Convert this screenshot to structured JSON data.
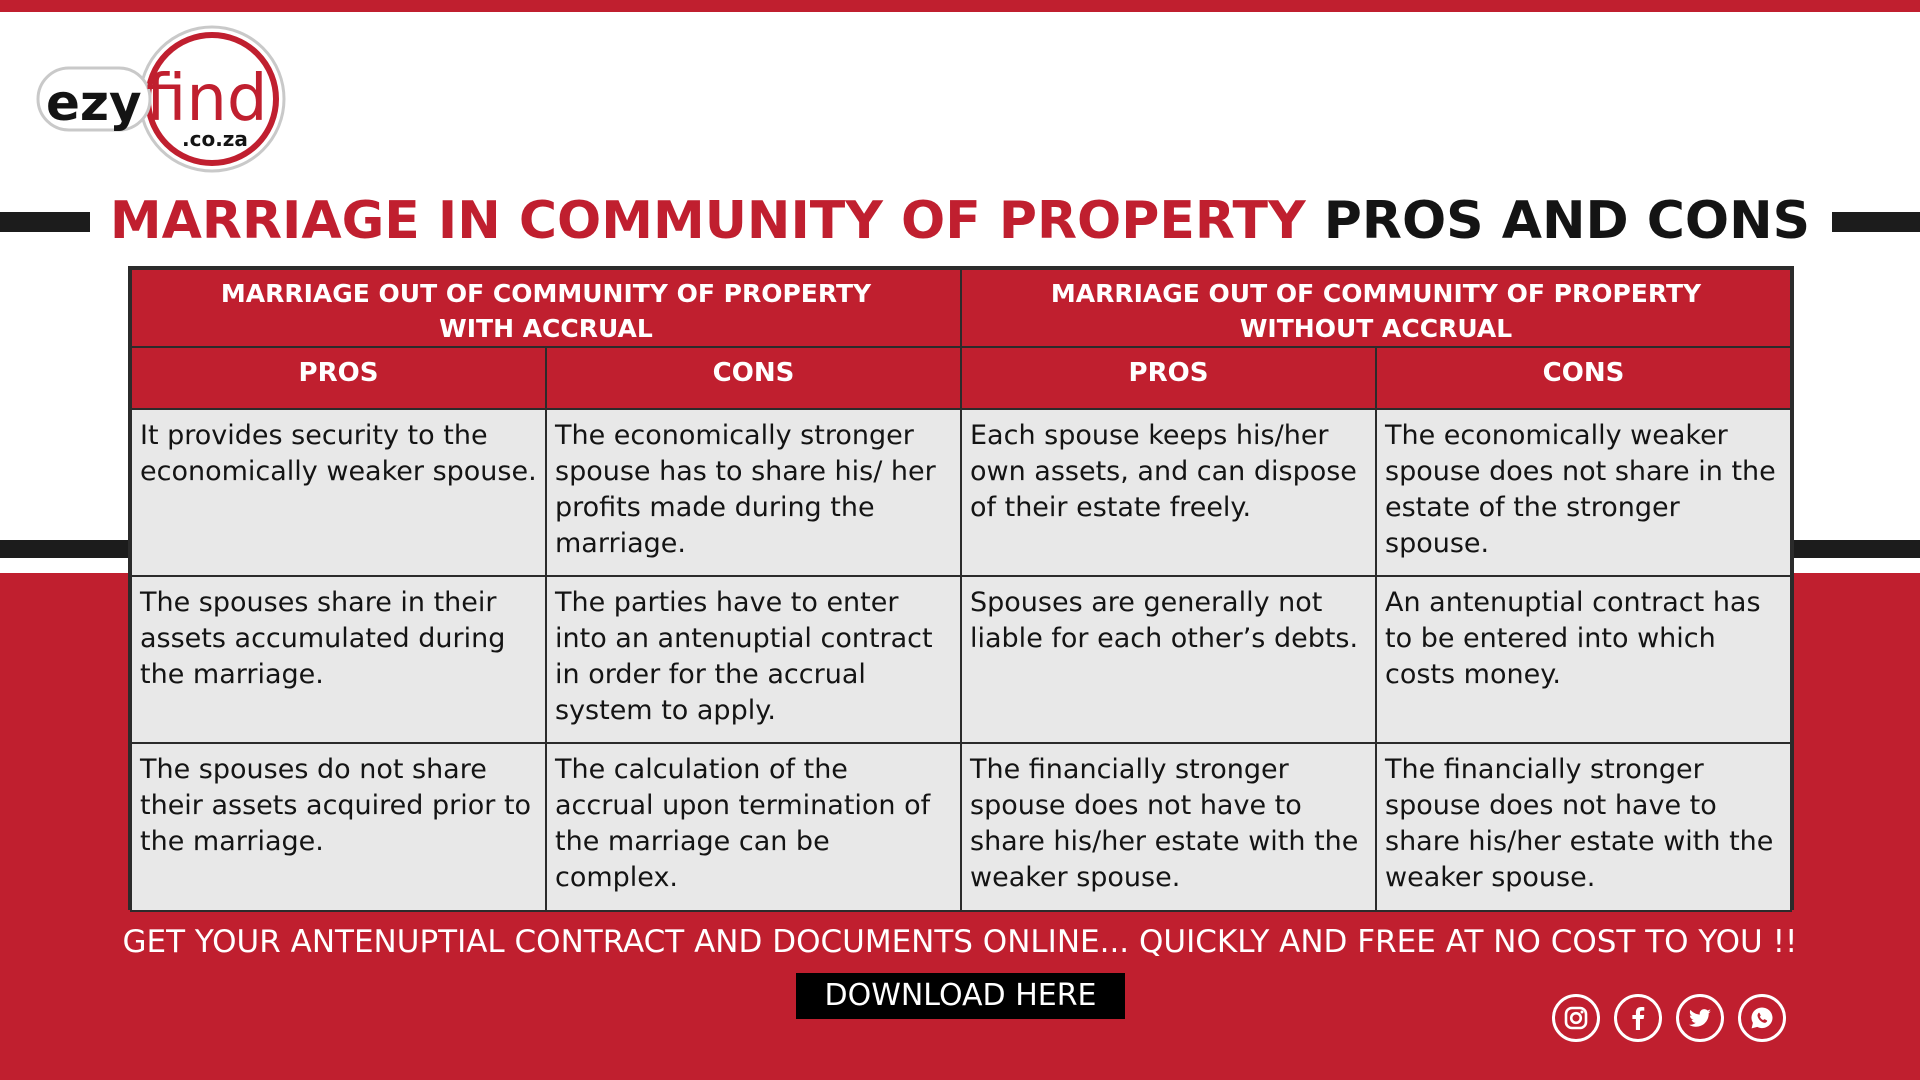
{
  "logo": {
    "brand_left": "ezy",
    "brand_right": "find",
    "domain": ".co.za"
  },
  "headline": {
    "red_part": "MARRIAGE IN COMMUNITY OF PROPERTY",
    "dark_part": "PROS AND CONS"
  },
  "table": {
    "groups": [
      {
        "title_line1": "MARRIAGE OUT OF COMMUNITY OF PROPERTY",
        "title_line2": "WITH ACCRUAL"
      },
      {
        "title_line1": "MARRIAGE OUT OF COMMUNITY OF PROPERTY",
        "title_line2": "WITHOUT ACCRUAL"
      }
    ],
    "column_headers": [
      "PROS",
      "CONS",
      "PROS",
      "CONS"
    ],
    "rows": [
      [
        "It provides security to the economically weaker spouse.",
        "The economically stronger spouse has to share his/ her profits made during the marriage.",
        "Each spouse keeps his/her own assets, and can dispose of their estate freely.",
        "The economically weaker spouse does not share in the estate of the stronger spouse."
      ],
      [
        "The spouses share in their assets accumulated during the marriage.",
        "The parties have to enter into an antenuptial contract in order for the accrual system to apply.",
        "Spouses are generally not liable for each other’s debts.",
        "An antenuptial contract has to be entered into which costs money."
      ],
      [
        "The spouses do not share their assets acquired prior to the marriage.",
        "The calculation of the accrual upon termination of the marriage can be complex.",
        "The financially stronger spouse does not have to share his/her estate with the weaker spouse.",
        "The financially stronger spouse does not have to share his/her estate with the weaker spouse."
      ]
    ]
  },
  "cta": {
    "text": "GET YOUR ANTENUPTIAL CONTRACT AND DOCUMENTS ONLINE... QUICKLY AND FREE AT NO COST TO YOU !!",
    "button_label": "DOWNLOAD HERE"
  },
  "socials": [
    "instagram-icon",
    "facebook-icon",
    "twitter-icon",
    "whatsapp-icon"
  ],
  "colors": {
    "brand_red": "#c01f2f",
    "dark": "#1c1c1c",
    "cell_background": "#e8e8e8"
  }
}
